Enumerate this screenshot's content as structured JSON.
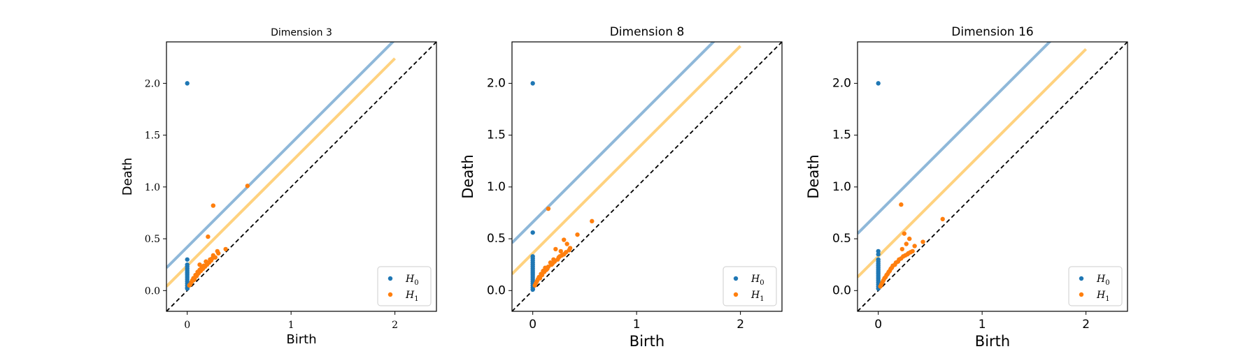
{
  "colors": {
    "h0": "#1f77b4",
    "h1": "#ff7f0e",
    "h0_band": "#8fb8d9",
    "h1_band": "#ffd27f",
    "diagonal": "#000000"
  },
  "legend": {
    "h0_label": "H",
    "h0_sub": "0",
    "h1_label": "H",
    "h1_sub": "1",
    "position": "bottom-right"
  },
  "chart_data": [
    {
      "type": "scatter",
      "title": "Dimension 3",
      "xlabel": "Birth",
      "ylabel": "Death",
      "xlim": [
        -0.2,
        2.4
      ],
      "ylim": [
        -0.2,
        2.4
      ],
      "xticks": [
        0,
        1,
        2
      ],
      "xtick_labels": [
        "0",
        "1",
        "2"
      ],
      "yticks": [
        0.0,
        0.5,
        1.0,
        1.5,
        2.0
      ],
      "ytick_labels": [
        "0.0",
        "0.5",
        "1.0",
        "1.5",
        "2.0"
      ],
      "confidence_bands": {
        "h0_offset": 0.42,
        "h1_offset": 0.24
      },
      "series": [
        {
          "name": "H0",
          "points": [
            [
              0,
              2.0
            ],
            [
              0,
              0.3
            ],
            [
              0,
              0.25
            ],
            [
              0,
              0.23
            ],
            [
              0,
              0.21
            ],
            [
              0,
              0.19
            ],
            [
              0,
              0.17
            ],
            [
              0,
              0.15
            ],
            [
              0,
              0.13
            ],
            [
              0,
              0.11
            ],
            [
              0,
              0.09
            ],
            [
              0,
              0.07
            ],
            [
              0,
              0.05
            ],
            [
              0,
              0.03
            ],
            [
              0,
              0.02
            ]
          ]
        },
        {
          "name": "H1",
          "points": [
            [
              0.58,
              1.01
            ],
            [
              0.25,
              0.82
            ],
            [
              0.2,
              0.52
            ],
            [
              0.37,
              0.4
            ],
            [
              0.29,
              0.38
            ],
            [
              0.25,
              0.34
            ],
            [
              0.18,
              0.28
            ],
            [
              0.22,
              0.3
            ],
            [
              0.12,
              0.25
            ],
            [
              0.14,
              0.22
            ],
            [
              0.1,
              0.18
            ],
            [
              0.08,
              0.15
            ],
            [
              0.06,
              0.12
            ],
            [
              0.05,
              0.1
            ],
            [
              0.04,
              0.08
            ],
            [
              0.03,
              0.06
            ],
            [
              0.02,
              0.05
            ],
            [
              0.07,
              0.11
            ],
            [
              0.09,
              0.14
            ],
            [
              0.11,
              0.17
            ],
            [
              0.13,
              0.19
            ],
            [
              0.15,
              0.21
            ],
            [
              0.17,
              0.23
            ],
            [
              0.19,
              0.25
            ],
            [
              0.21,
              0.27
            ],
            [
              0.23,
              0.29
            ],
            [
              0.27,
              0.32
            ],
            [
              0.24,
              0.31
            ],
            [
              0.16,
              0.24
            ],
            [
              0.12,
              0.2
            ],
            [
              0.1,
              0.16
            ],
            [
              0.06,
              0.1
            ],
            [
              0.3,
              0.36
            ]
          ]
        }
      ]
    },
    {
      "type": "scatter",
      "title": "Dimension 8",
      "xlabel": "Birth",
      "ylabel": "Death",
      "xlim": [
        -0.2,
        2.4
      ],
      "ylim": [
        -0.2,
        2.4
      ],
      "xticks": [
        0,
        1,
        2
      ],
      "xtick_labels": [
        "0",
        "1",
        "2"
      ],
      "yticks": [
        0.0,
        0.5,
        1.0,
        1.5,
        2.0
      ],
      "ytick_labels": [
        "0.0",
        "0.5",
        "1.0",
        "1.5",
        "2.0"
      ],
      "confidence_bands": {
        "h0_offset": 0.66,
        "h1_offset": 0.36
      },
      "series": [
        {
          "name": "H0",
          "points": [
            [
              0,
              2.0
            ],
            [
              0,
              0.56
            ],
            [
              0,
              0.33
            ],
            [
              0,
              0.31
            ],
            [
              0,
              0.29
            ],
            [
              0,
              0.27
            ],
            [
              0,
              0.25
            ],
            [
              0,
              0.23
            ],
            [
              0,
              0.21
            ],
            [
              0,
              0.19
            ],
            [
              0,
              0.17
            ],
            [
              0,
              0.15
            ],
            [
              0,
              0.13
            ],
            [
              0,
              0.11
            ],
            [
              0,
              0.09
            ],
            [
              0,
              0.07
            ],
            [
              0,
              0.05
            ],
            [
              0,
              0.03
            ],
            [
              0,
              0.01
            ]
          ]
        },
        {
          "name": "H1",
          "points": [
            [
              0.15,
              0.79
            ],
            [
              0.57,
              0.67
            ],
            [
              0.3,
              0.49
            ],
            [
              0.43,
              0.54
            ],
            [
              0.22,
              0.4
            ],
            [
              0.33,
              0.45
            ],
            [
              0.27,
              0.38
            ],
            [
              0.36,
              0.41
            ],
            [
              0.3,
              0.35
            ],
            [
              0.25,
              0.32
            ],
            [
              0.2,
              0.3
            ],
            [
              0.17,
              0.27
            ],
            [
              0.12,
              0.22
            ],
            [
              0.1,
              0.19
            ],
            [
              0.08,
              0.16
            ],
            [
              0.06,
              0.13
            ],
            [
              0.05,
              0.11
            ],
            [
              0.04,
              0.09
            ],
            [
              0.03,
              0.07
            ],
            [
              0.02,
              0.05
            ],
            [
              0.07,
              0.12
            ],
            [
              0.09,
              0.15
            ],
            [
              0.11,
              0.18
            ],
            [
              0.13,
              0.2
            ],
            [
              0.15,
              0.23
            ],
            [
              0.18,
              0.25
            ],
            [
              0.21,
              0.28
            ],
            [
              0.24,
              0.3
            ],
            [
              0.28,
              0.34
            ],
            [
              0.32,
              0.37
            ],
            [
              0.26,
              0.33
            ],
            [
              0.19,
              0.26
            ],
            [
              0.14,
              0.21
            ],
            [
              0.35,
              0.39
            ]
          ]
        }
      ]
    },
    {
      "type": "scatter",
      "title": "Dimension 16",
      "xlabel": "Birth",
      "ylabel": "Death",
      "xlim": [
        -0.2,
        2.4
      ],
      "ylim": [
        -0.2,
        2.4
      ],
      "xticks": [
        0,
        1,
        2
      ],
      "xtick_labels": [
        "0",
        "1",
        "2"
      ],
      "yticks": [
        0.0,
        0.5,
        1.0,
        1.5,
        2.0
      ],
      "ytick_labels": [
        "0.0",
        "0.5",
        "1.0",
        "1.5",
        "2.0"
      ],
      "confidence_bands": {
        "h0_offset": 0.75,
        "h1_offset": 0.33
      },
      "series": [
        {
          "name": "H0",
          "points": [
            [
              0,
              2.0
            ],
            [
              0,
              0.38
            ],
            [
              0,
              0.35
            ],
            [
              0,
              0.3
            ],
            [
              0,
              0.28
            ],
            [
              0,
              0.26
            ],
            [
              0,
              0.24
            ],
            [
              0,
              0.22
            ],
            [
              0,
              0.2
            ],
            [
              0,
              0.18
            ],
            [
              0,
              0.16
            ],
            [
              0,
              0.14
            ],
            [
              0,
              0.12
            ],
            [
              0,
              0.1
            ],
            [
              0,
              0.08
            ],
            [
              0,
              0.06
            ],
            [
              0,
              0.04
            ],
            [
              0,
              0.02
            ]
          ]
        },
        {
          "name": "H1",
          "points": [
            [
              0.22,
              0.83
            ],
            [
              0.62,
              0.69
            ],
            [
              0.25,
              0.55
            ],
            [
              0.3,
              0.5
            ],
            [
              0.43,
              0.47
            ],
            [
              0.27,
              0.45
            ],
            [
              0.35,
              0.43
            ],
            [
              0.23,
              0.4
            ],
            [
              0.33,
              0.38
            ],
            [
              0.29,
              0.36
            ],
            [
              0.26,
              0.34
            ],
            [
              0.2,
              0.3
            ],
            [
              0.17,
              0.27
            ],
            [
              0.14,
              0.24
            ],
            [
              0.12,
              0.21
            ],
            [
              0.1,
              0.18
            ],
            [
              0.08,
              0.15
            ],
            [
              0.06,
              0.12
            ],
            [
              0.05,
              0.1
            ],
            [
              0.04,
              0.08
            ],
            [
              0.03,
              0.06
            ],
            [
              0.02,
              0.04
            ],
            [
              0.07,
              0.13
            ],
            [
              0.09,
              0.16
            ],
            [
              0.11,
              0.19
            ],
            [
              0.13,
              0.22
            ],
            [
              0.16,
              0.25
            ],
            [
              0.19,
              0.28
            ],
            [
              0.22,
              0.31
            ],
            [
              0.24,
              0.33
            ],
            [
              0.31,
              0.37
            ],
            [
              0.28,
              0.35
            ]
          ]
        }
      ]
    }
  ]
}
